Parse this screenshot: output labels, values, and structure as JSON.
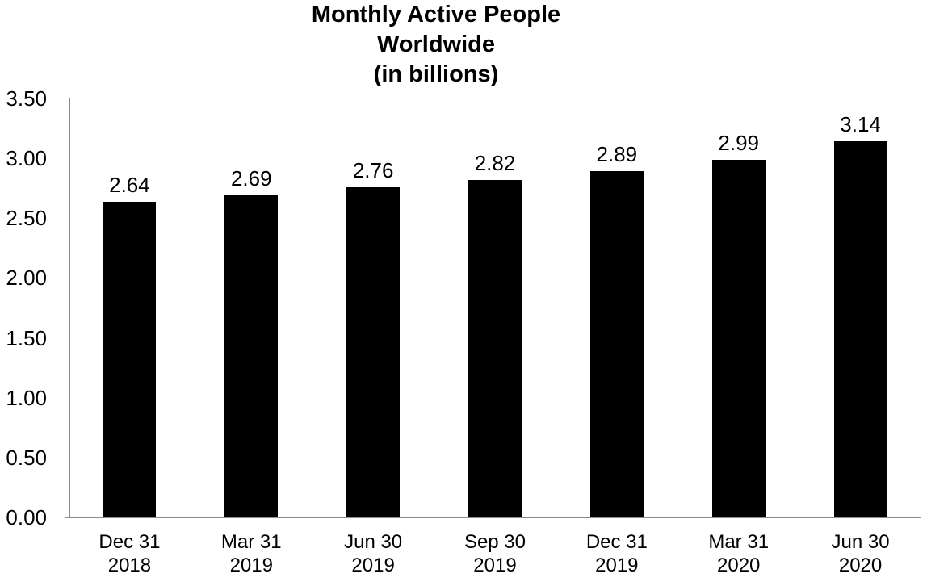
{
  "chart_data": {
    "type": "bar",
    "title": "Monthly Active People Worldwide (in billions)",
    "title_lines": [
      "Monthly Active People",
      "Worldwide",
      "(in billions)"
    ],
    "categories": [
      [
        "Dec 31",
        "2018"
      ],
      [
        "Mar 31",
        "2019"
      ],
      [
        "Jun 30",
        "2019"
      ],
      [
        "Sep 30",
        "2019"
      ],
      [
        "Dec 31",
        "2019"
      ],
      [
        "Mar 31",
        "2020"
      ],
      [
        "Jun 30",
        "2020"
      ]
    ],
    "values": [
      2.64,
      2.69,
      2.76,
      2.82,
      2.89,
      2.99,
      3.14
    ],
    "data_labels": [
      "2.64",
      "2.69",
      "2.76",
      "2.82",
      "2.89",
      "2.99",
      "3.14"
    ],
    "y_ticks": [
      "0.00",
      "0.50",
      "1.00",
      "1.50",
      "2.00",
      "2.50",
      "3.00",
      "3.50"
    ],
    "ylim": [
      0,
      3.5
    ],
    "y_tick_step": 0.5,
    "xlabel": "",
    "ylabel": "",
    "grid": false,
    "legend": false,
    "bar_color": "#000000",
    "axis_color": "#8a8a8a",
    "background_color": "#ffffff",
    "text_color": "#000000"
  }
}
